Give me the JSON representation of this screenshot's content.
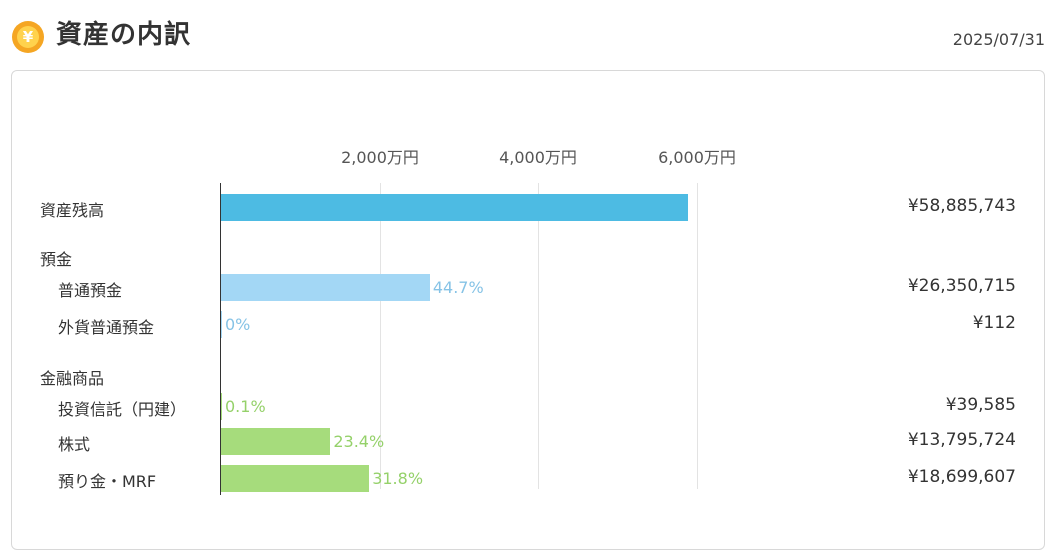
{
  "header": {
    "title": "資産の内訳",
    "date": "2025/07/31",
    "icon": "yen-coin-icon",
    "icon_glyph": "¥"
  },
  "colors": {
    "total": "#4dbbe3",
    "deposit": "#a3d7f5",
    "deposit_text": "#86c3e6",
    "product": "#a6dc7c",
    "product_text": "#95d16a"
  },
  "axis": {
    "ticks": [
      "2,000万円",
      "4,000万円",
      "6,000万円"
    ]
  },
  "chart_data": {
    "type": "bar",
    "orientation": "horizontal",
    "unit": "万円",
    "xlim": [
      0,
      6000
    ],
    "ticks": [
      2000,
      4000,
      6000
    ],
    "rows": [
      {
        "label": "資産残高",
        "value": 5888.5743,
        "amount": "¥58,885,743",
        "percent": "",
        "color": "total"
      },
      {
        "group": "預金"
      },
      {
        "label": "普通預金",
        "value": 2635.0715,
        "amount": "¥26,350,715",
        "percent": "44.7%",
        "color": "deposit"
      },
      {
        "label": "外貨普通預金",
        "value": 0.0112,
        "amount": "¥112",
        "percent": "0%",
        "color": "deposit"
      },
      {
        "group": "金融商品"
      },
      {
        "label": "投資信託（円建）",
        "value": 3.9585,
        "amount": "¥39,585",
        "percent": "0.1%",
        "color": "product"
      },
      {
        "label": "株式",
        "value": 1379.5724,
        "amount": "¥13,795,724",
        "percent": "23.4%",
        "color": "product"
      },
      {
        "label": "預り金・MRF",
        "value": 1869.9607,
        "amount": "¥18,699,607",
        "percent": "31.8%",
        "color": "product"
      }
    ]
  }
}
